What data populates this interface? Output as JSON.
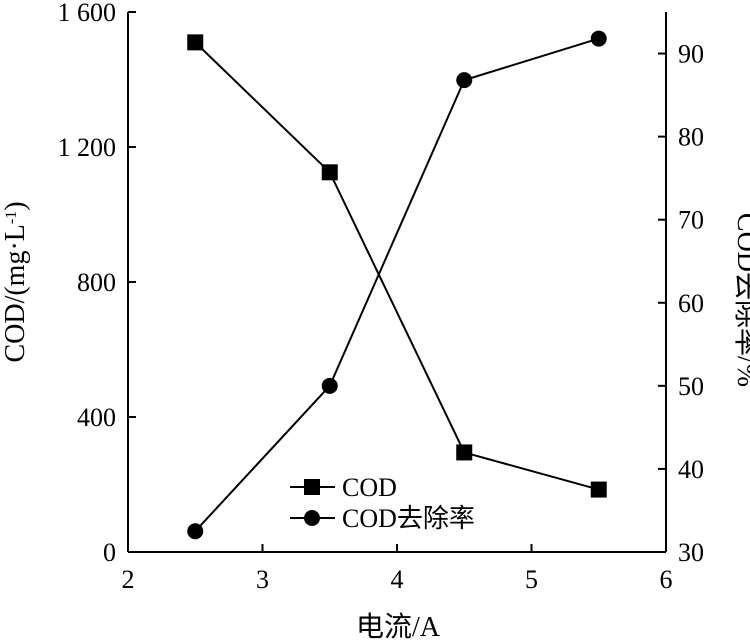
{
  "chart_data": {
    "type": "line",
    "x": [
      2.5,
      3.5,
      4.5,
      5.5
    ],
    "xlabel": "电流/A",
    "xlim": [
      2,
      6
    ],
    "xticks": [
      2,
      3,
      4,
      5,
      6
    ],
    "xtick_labels": [
      "2",
      "3",
      "4",
      "5",
      "6"
    ],
    "ylabel": "COD/(mg·L",
    "ylabel_sup": "-1",
    "ylabel_end": ")",
    "ylim": [
      0,
      1600
    ],
    "yticks": [
      0,
      400,
      800,
      1200,
      1600
    ],
    "ytick_labels": [
      "0",
      "400",
      "800",
      "1 200",
      "1 600"
    ],
    "y2label": "COD去除率/%",
    "y2lim": [
      30,
      95
    ],
    "y2ticks": [
      30,
      40,
      50,
      60,
      70,
      80,
      90
    ],
    "y2tick_labels": [
      "30",
      "40",
      "50",
      "60",
      "70",
      "80",
      "90"
    ],
    "legend_position": "bottom-center",
    "grid": false,
    "series": [
      {
        "name": "COD",
        "axis": "left",
        "marker": "square",
        "values": [
          1510,
          1125,
          295,
          185
        ]
      },
      {
        "name": "COD去除率",
        "axis": "right",
        "marker": "circle",
        "values": [
          32.5,
          50,
          86.8,
          91.8
        ]
      }
    ]
  }
}
